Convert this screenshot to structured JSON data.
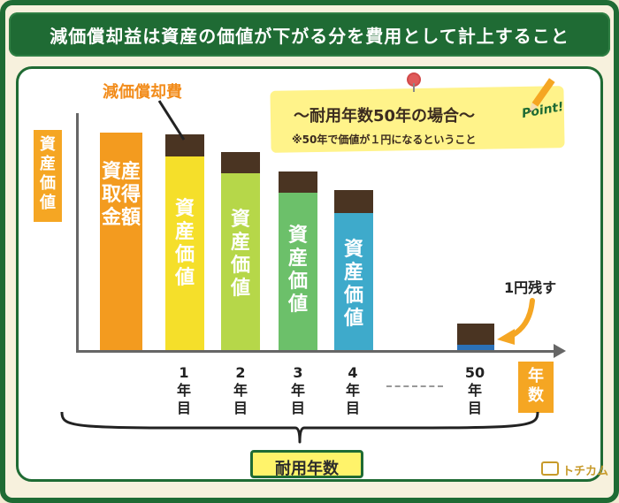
{
  "title": "減価償却益は資産の価値が下がる分を費用として計上すること",
  "y_axis_label": "資産価値",
  "x_axis_label": "年数",
  "bottom_label": "耐用年数",
  "annotation_depreciation": "減価償却費",
  "annotation_remaining": "1円残す",
  "point_box": {
    "main": "～耐用年数50年の場合～",
    "sub": "※50年で価値が１円になるということ",
    "badge": "Point!"
  },
  "logo": {
    "text": "トチカム"
  },
  "bars": [
    {
      "label": "資産取得金額",
      "tick": ""
    },
    {
      "label": "資産価値",
      "tick": "1年目"
    },
    {
      "label": "資産価値",
      "tick": "2年目"
    },
    {
      "label": "資産価値",
      "tick": "3年目"
    },
    {
      "label": "資産価値",
      "tick": "4年目"
    },
    {
      "label": "",
      "tick": "50年目"
    }
  ],
  "colors": {
    "bar0": "#f39b1f",
    "bar1": "#f5df2a",
    "bar2": "#b6d749",
    "bar3": "#6cc06a",
    "bar4": "#3eaacb",
    "bar5": "#2b71b8",
    "cap": "#4a3422",
    "accent": "#f5a623",
    "frame": "#1f6b34"
  }
}
